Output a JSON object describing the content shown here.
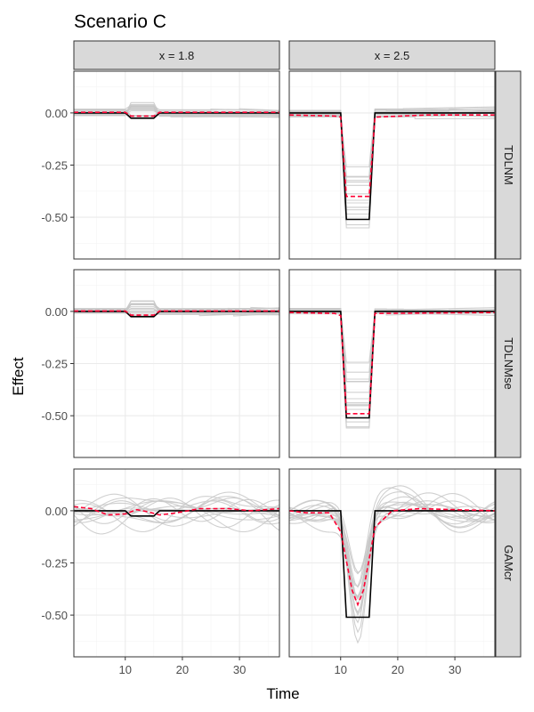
{
  "chart_data": {
    "type": "line",
    "title": "Scenario C",
    "xlabel": "Time",
    "ylabel": "Effect",
    "xlim": [
      1,
      37
    ],
    "ylim": [
      -0.7,
      0.2
    ],
    "x_ticks": [
      10,
      20,
      30
    ],
    "x_tick_labels": [
      "10",
      "20",
      "30"
    ],
    "y_ticks": [
      0,
      -0.25,
      -0.5
    ],
    "y_tick_labels": [
      "0.00",
      "-0.25",
      "-0.50"
    ],
    "grid": true,
    "col_facets": [
      "x = 1.8",
      "x = 2.5"
    ],
    "row_facets": [
      "TDLNM",
      "TDLNMse",
      "GAMcr"
    ],
    "colors": {
      "truth": "#000000",
      "mean_estimate": "#ff0033",
      "replicates": "#c8c8c8",
      "strip_fill": "#d9d9d9",
      "grid": "#ebebeb"
    },
    "truth": {
      "x = 1.8": [
        [
          1,
          0
        ],
        [
          10,
          0
        ],
        [
          11,
          -0.025
        ],
        [
          15,
          -0.025
        ],
        [
          16,
          0
        ],
        [
          37,
          0
        ]
      ],
      "x = 2.5": [
        [
          1,
          0
        ],
        [
          10,
          0
        ],
        [
          11,
          -0.51
        ],
        [
          15,
          -0.51
        ],
        [
          16,
          0
        ],
        [
          37,
          0
        ]
      ]
    },
    "mean_estimate": {
      "TDLNM|x = 1.8": [
        [
          1,
          0.003
        ],
        [
          10,
          0.003
        ],
        [
          11,
          -0.015
        ],
        [
          15,
          -0.015
        ],
        [
          16,
          0.003
        ],
        [
          37,
          0.003
        ]
      ],
      "TDLNM|x = 2.5": [
        [
          1,
          -0.01
        ],
        [
          9,
          -0.015
        ],
        [
          10,
          -0.02
        ],
        [
          11,
          -0.4
        ],
        [
          15,
          -0.4
        ],
        [
          16,
          -0.02
        ],
        [
          25,
          -0.01
        ],
        [
          37,
          -0.01
        ]
      ],
      "TDLNMse|x = 1.8": [
        [
          1,
          0.002
        ],
        [
          10,
          0.002
        ],
        [
          11,
          -0.018
        ],
        [
          15,
          -0.018
        ],
        [
          16,
          0.002
        ],
        [
          37,
          0.002
        ]
      ],
      "TDLNMse|x = 2.5": [
        [
          1,
          -0.005
        ],
        [
          9,
          -0.01
        ],
        [
          10,
          -0.02
        ],
        [
          11,
          -0.49
        ],
        [
          15,
          -0.49
        ],
        [
          16,
          -0.01
        ],
        [
          37,
          -0.005
        ]
      ],
      "GAMcr|x = 1.8": [
        [
          1,
          0.02
        ],
        [
          4,
          0.01
        ],
        [
          7,
          -0.02
        ],
        [
          10,
          -0.015
        ],
        [
          12,
          0.005
        ],
        [
          14,
          -0.005
        ],
        [
          16,
          -0.02
        ],
        [
          19,
          -0.01
        ],
        [
          23,
          0.01
        ],
        [
          28,
          0.01
        ],
        [
          32,
          0.0
        ],
        [
          37,
          0.01
        ]
      ],
      "GAMcr|x = 2.5": [
        [
          1,
          0.0
        ],
        [
          4,
          -0.01
        ],
        [
          8,
          -0.01
        ],
        [
          10,
          -0.1
        ],
        [
          12,
          -0.38
        ],
        [
          13,
          -0.45
        ],
        [
          14,
          -0.38
        ],
        [
          16,
          -0.08
        ],
        [
          19,
          0.0
        ],
        [
          24,
          0.01
        ],
        [
          30,
          0.005
        ],
        [
          37,
          0.0
        ]
      ]
    }
  }
}
